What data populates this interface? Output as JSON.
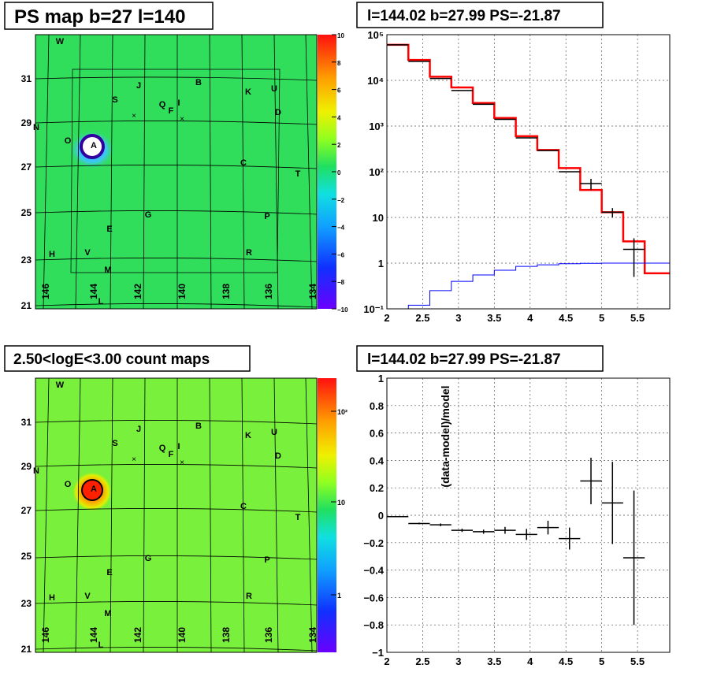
{
  "panels": {
    "ps_map": {
      "title": "PS map b=27 l=140",
      "y_ticks": [
        "31",
        "29",
        "27",
        "25",
        "23",
        "21"
      ],
      "x_ticks": [
        "146",
        "144",
        "142",
        "140",
        "138",
        "136",
        "134"
      ],
      "colorbar_ticks": [
        "10",
        "8",
        "6",
        "4",
        "2",
        "0",
        "−2",
        "−4",
        "−6",
        "−8",
        "−10"
      ],
      "labels": [
        "W",
        "J",
        "B",
        "S",
        "Q",
        "I",
        "F",
        "K",
        "U",
        "D",
        "N",
        "O",
        "A",
        "C",
        "T",
        "G",
        "P",
        "E",
        "H",
        "V",
        "R",
        "M",
        "L"
      ]
    },
    "count_map": {
      "title": "2.50<logE<3.00 count maps",
      "y_ticks": [
        "31",
        "29",
        "27",
        "25",
        "23",
        "21"
      ],
      "x_ticks": [
        "146",
        "144",
        "142",
        "140",
        "138",
        "136",
        "134"
      ],
      "colorbar_ticks": [
        "10²",
        "10",
        "1"
      ],
      "labels": [
        "W",
        "J",
        "B",
        "S",
        "Q",
        "I",
        "F",
        "K",
        "U",
        "D",
        "N",
        "O",
        "A",
        "C",
        "T",
        "G",
        "P",
        "E",
        "H",
        "V",
        "R",
        "M",
        "L"
      ]
    }
  },
  "chart_data": [
    {
      "type": "line",
      "title": "l=144.02 b=27.99 PS=-21.87",
      "xlabel": "",
      "ylabel": "",
      "yscale": "log",
      "xlim": [
        2.0,
        5.95
      ],
      "ylim": [
        0.1,
        100000
      ],
      "grid": true,
      "x_ticks": [
        "2",
        "2.5",
        "3",
        "3.5",
        "4",
        "4.5",
        "5",
        "5.5"
      ],
      "y_ticks": [
        "10⁵",
        "10⁴",
        "10³",
        "10²",
        "10",
        "1",
        "10⁻¹"
      ],
      "bin_edges": [
        2.0,
        2.3,
        2.6,
        2.9,
        3.2,
        3.5,
        3.8,
        4.1,
        4.4,
        4.7,
        5.0,
        5.3,
        5.6,
        5.95
      ],
      "series": [
        {
          "values": [
            60000,
            28000,
            12000,
            7000,
            3200,
            1500,
            600,
            300,
            120,
            40,
            13,
            3,
            0.6
          ],
          "color": "#ff0000"
        },
        {
          "values": [
            0.1,
            0.12,
            0.25,
            0.4,
            0.55,
            0.7,
            0.85,
            0.92,
            0.97,
            0.99,
            1.0,
            1.0,
            1.0
          ],
          "color": "#0000ff"
        },
        {
          "values": [
            60000,
            26000,
            11000,
            6000,
            3000,
            1400,
            550,
            290,
            100,
            55,
            13,
            2,
            null
          ],
          "errors": [
            null,
            null,
            null,
            null,
            null,
            null,
            null,
            null,
            null,
            15,
            3,
            1.5,
            null
          ],
          "color": "#000000"
        }
      ]
    },
    {
      "type": "scatter",
      "title": "l=144.02 b=27.99 PS=-21.87",
      "xlabel": "",
      "ylabel": "(data-model)/model",
      "xlim": [
        2.0,
        5.95
      ],
      "ylim": [
        -1,
        1
      ],
      "grid": true,
      "x_ticks": [
        "2",
        "2.5",
        "3",
        "3.5",
        "4",
        "4.5",
        "5",
        "5.5"
      ],
      "y_ticks": [
        "1",
        "0.8",
        "0.6",
        "0.4",
        "0.2",
        "0",
        "−0.2",
        "−0.4",
        "−0.6",
        "−0.8",
        "−1"
      ],
      "points": [
        {
          "x": 2.15,
          "y": -0.01,
          "xerr": 0.15,
          "yerr": 0.004
        },
        {
          "x": 2.45,
          "y": -0.06,
          "xerr": 0.15,
          "yerr": 0.006
        },
        {
          "x": 2.75,
          "y": -0.07,
          "xerr": 0.15,
          "yerr": 0.01
        },
        {
          "x": 3.05,
          "y": -0.11,
          "xerr": 0.15,
          "yerr": 0.012
        },
        {
          "x": 3.35,
          "y": -0.12,
          "xerr": 0.15,
          "yerr": 0.015
        },
        {
          "x": 3.65,
          "y": -0.11,
          "xerr": 0.15,
          "yerr": 0.025
        },
        {
          "x": 3.95,
          "y": -0.14,
          "xerr": 0.15,
          "yerr": 0.04
        },
        {
          "x": 4.25,
          "y": -0.09,
          "xerr": 0.15,
          "yerr": 0.05
        },
        {
          "x": 4.55,
          "y": -0.17,
          "xerr": 0.15,
          "yerr": 0.08
        },
        {
          "x": 4.85,
          "y": 0.25,
          "xerr": 0.15,
          "yerr": 0.17
        },
        {
          "x": 5.15,
          "y": 0.09,
          "xerr": 0.15,
          "yerr": 0.3
        },
        {
          "x": 5.45,
          "y": -0.31,
          "xerr": 0.15,
          "yerr": 0.49
        }
      ]
    }
  ]
}
